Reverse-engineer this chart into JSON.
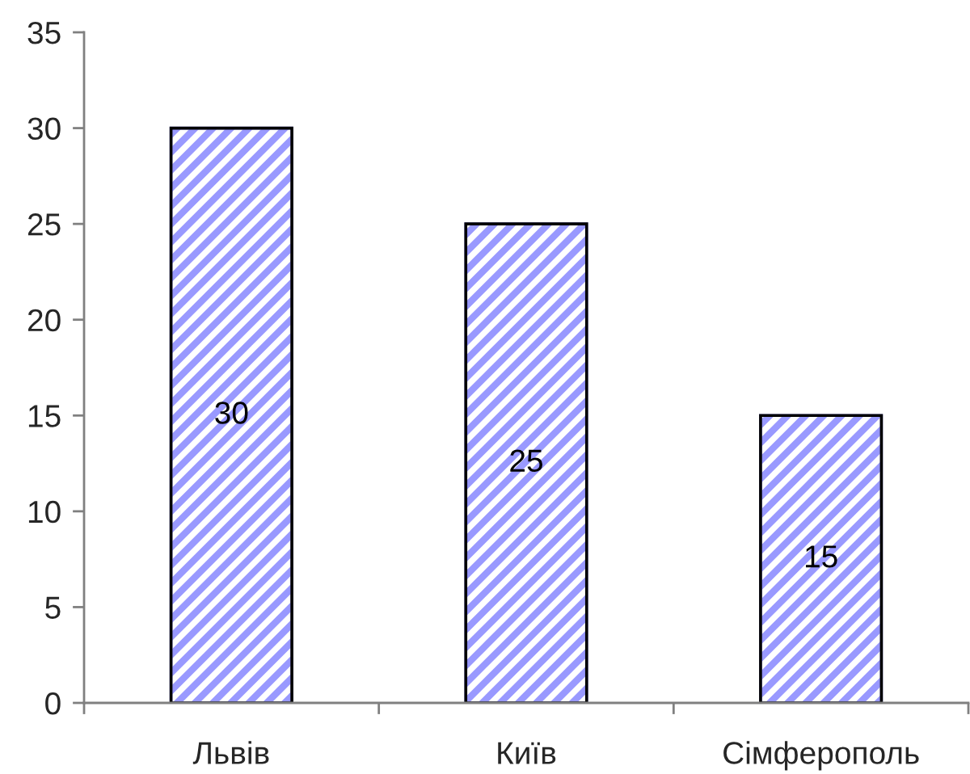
{
  "chart_data": {
    "type": "bar",
    "categories": [
      "Львів",
      "Київ",
      "Сімферополь"
    ],
    "values": [
      30,
      25,
      15
    ],
    "color": "#9999ff",
    "ylim": [
      0,
      35
    ],
    "yticks": [
      0,
      5,
      10,
      15,
      20,
      25,
      30,
      35
    ],
    "grid": false,
    "data_labels": true
  }
}
